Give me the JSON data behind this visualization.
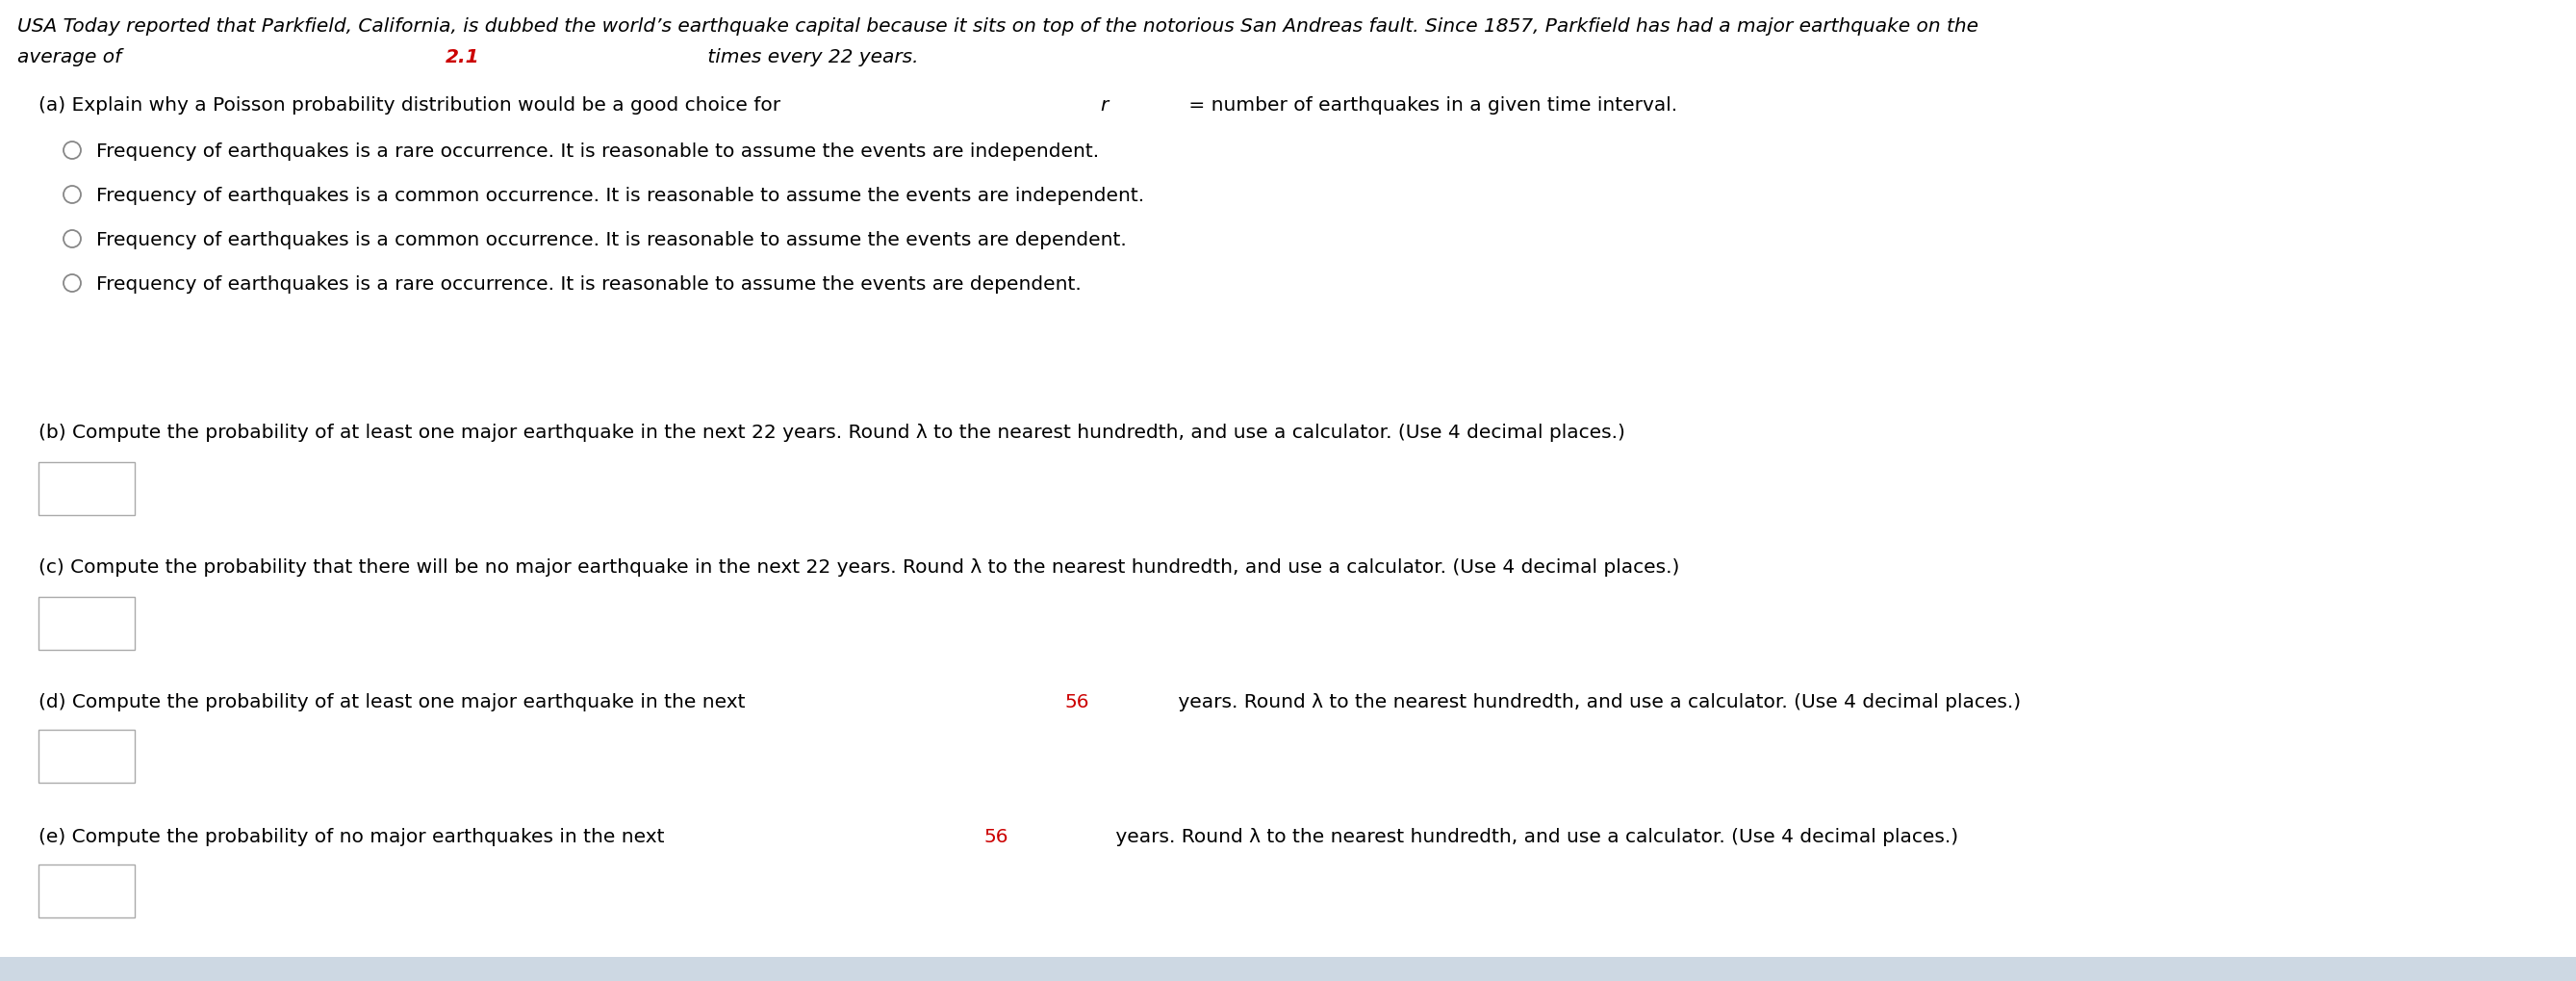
{
  "bg_color": "#ffffff",
  "text_color": "#000000",
  "red_color": "#cc0000",
  "intro_line1": "USA Today reported that Parkfield, California, is dubbed the world’s earthquake capital because it sits on top of the notorious San Andreas fault. Since 1857, Parkfield has had a major earthquake on the",
  "intro_line2_pre": "average of ",
  "intro_line2_highlight": "2.1",
  "intro_line2_post": " times every 22 years.",
  "part_a_label": "(a) Explain why a Poisson probability distribution would be a good choice for ",
  "part_a_label_r": "r",
  "part_a_label_end": " = number of earthquakes in a given time interval.",
  "options": [
    "Frequency of earthquakes is a rare occurrence. It is reasonable to assume the events are independent.",
    "Frequency of earthquakes is a common occurrence. It is reasonable to assume the events are independent.",
    "Frequency of earthquakes is a common occurrence. It is reasonable to assume the events are dependent.",
    "Frequency of earthquakes is a rare occurrence. It is reasonable to assume the events are dependent."
  ],
  "part_b": "(b) Compute the probability of at least one major earthquake in the next 22 years. Round λ to the nearest hundredth, and use a calculator. (Use 4 decimal places.)",
  "part_c": "(c) Compute the probability that there will be no major earthquake in the next 22 years. Round λ to the nearest hundredth, and use a calculator. (Use 4 decimal places.)",
  "part_d_pre": "(d) Compute the probability of at least one major earthquake in the next ",
  "part_d_highlight": "56",
  "part_d_post": " years. Round λ to the nearest hundredth, and use a calculator. (Use 4 decimal places.)",
  "part_e_pre": "(e) Compute the probability of no major earthquakes in the next ",
  "part_e_highlight": "56",
  "part_e_post": " years. Round λ to the nearest hundredth, and use a calculator. (Use 4 decimal places.)",
  "font_size": 14.5,
  "font_size_intro": 14.5
}
